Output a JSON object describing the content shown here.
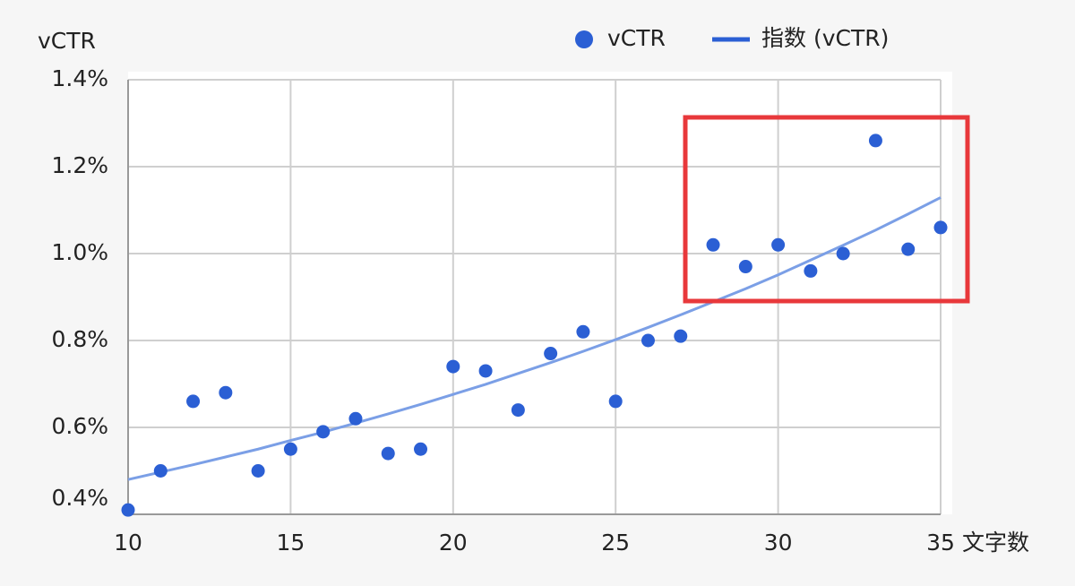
{
  "chart_data": {
    "type": "scatter",
    "y_label": "vCTR",
    "x_label": "文字数",
    "x": [
      10,
      11,
      12,
      13,
      14,
      15,
      16,
      17,
      18,
      19,
      20,
      21,
      22,
      23,
      24,
      25,
      26,
      27,
      28,
      29,
      30,
      31,
      32,
      33,
      34,
      35
    ],
    "series": [
      {
        "name": "vCTR",
        "color": "#2b5fd4",
        "kind": "points",
        "values": [
          0.41,
          0.5,
          0.66,
          0.68,
          0.5,
          0.55,
          0.59,
          0.62,
          0.54,
          0.55,
          0.74,
          0.73,
          0.64,
          0.77,
          0.82,
          0.66,
          0.8,
          0.81,
          1.02,
          0.97,
          1.02,
          0.96,
          1.0,
          1.26,
          1.01,
          1.06
        ]
      },
      {
        "name": "指数 (vCTR)",
        "color": "#7b9fe6",
        "kind": "line",
        "values": [
          0.48,
          0.497,
          0.514,
          0.532,
          0.55,
          0.57,
          0.589,
          0.61,
          0.631,
          0.653,
          0.676,
          0.699,
          0.724,
          0.749,
          0.775,
          0.802,
          0.83,
          0.859,
          0.889,
          0.919,
          0.951,
          0.985,
          1.019,
          1.054,
          1.091,
          1.129
        ]
      }
    ],
    "xlim": [
      10,
      35
    ],
    "xticks": [
      10,
      15,
      20,
      25,
      30,
      35
    ],
    "ylim": [
      0.4,
      1.4
    ],
    "yticks": [
      {
        "value": 0.4,
        "label": "0.4%"
      },
      {
        "value": 0.6,
        "label": "0.6%"
      },
      {
        "value": 0.8,
        "label": "0.8%"
      },
      {
        "value": 1.0,
        "label": "1.0%"
      },
      {
        "value": 1.2,
        "label": "1.2%"
      },
      {
        "value": 1.4,
        "label": "1.4%"
      }
    ],
    "grid": true,
    "legend": "top-right"
  }
}
